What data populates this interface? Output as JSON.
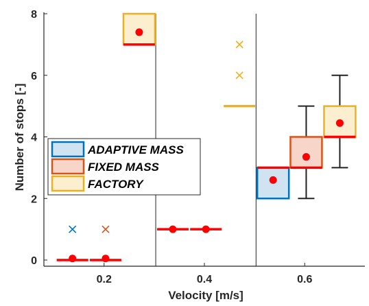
{
  "chart_data": {
    "type": "boxplot",
    "xlabel": "Velocity [m/s]",
    "ylabel": "Number of stops [-]",
    "xlim": [
      0.08,
      0.72
    ],
    "ylim": [
      -0.2,
      8
    ],
    "xticks": [
      "0.2",
      "0.4",
      "0.6"
    ],
    "yticks": [
      "0",
      "2",
      "4",
      "6",
      "8"
    ],
    "grid": "vertical",
    "legend_position": "middle-left",
    "series": [
      {
        "name": "ADAPTIVE MASS",
        "color": "#0072BD",
        "fill": "#cfe3f1"
      },
      {
        "name": "FIXED MASS",
        "color": "#D95319",
        "fill": "#f7d5c8"
      },
      {
        "name": "FACTORY",
        "color": "#EDB120",
        "fill": "#fbefcf"
      }
    ],
    "groups": [
      {
        "series": "ADAPTIVE MASS",
        "x": 0.137,
        "q1": 0,
        "median": 0,
        "q3": 0,
        "mean": 0.05,
        "outliers": [
          1
        ]
      },
      {
        "series": "FIXED MASS",
        "x": 0.203,
        "q1": 0,
        "median": 0,
        "q3": 0,
        "mean": 0.05,
        "outliers": [
          1
        ]
      },
      {
        "series": "FACTORY",
        "x": 0.27,
        "q1": 7,
        "median": 7,
        "q3": 8,
        "mean": 7.4,
        "outliers": []
      },
      {
        "series": "ADAPTIVE MASS",
        "x": 0.337,
        "q1": 1,
        "median": 1,
        "q3": 1,
        "mean": 1,
        "outliers": []
      },
      {
        "series": "FIXED MASS",
        "x": 0.403,
        "q1": 1,
        "median": 1,
        "q3": 1,
        "mean": 1,
        "outliers": []
      },
      {
        "series": "FACTORY",
        "x": 0.47,
        "q1": 5,
        "median": 5,
        "q3": 5,
        "outliers": [
          6,
          7
        ]
      },
      {
        "series": "ADAPTIVE MASS",
        "x": 0.537,
        "q1": 2,
        "median": 3,
        "q3": 3,
        "mean": 2.6,
        "outliers": []
      },
      {
        "series": "FIXED MASS",
        "x": 0.603,
        "q1": 3,
        "median": 3,
        "q3": 4,
        "whisker_low": 2,
        "whisker_high": 5,
        "mean": 3.35,
        "outliers": []
      },
      {
        "series": "FACTORY",
        "x": 0.67,
        "q1": 4,
        "median": 4,
        "q3": 5,
        "whisker_low": 3,
        "whisker_high": 6,
        "mean": 4.45,
        "outliers": []
      }
    ],
    "separators": [
      0.303,
      0.503
    ]
  }
}
